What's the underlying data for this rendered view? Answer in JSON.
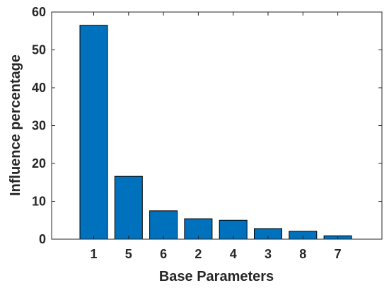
{
  "chart_data": {
    "type": "bar",
    "title": "",
    "xlabel": "Base Parameters",
    "ylabel": "Influence percentage",
    "categories": [
      "1",
      "5",
      "6",
      "2",
      "4",
      "3",
      "8",
      "7"
    ],
    "values": [
      56.5,
      16.6,
      7.5,
      5.4,
      5.0,
      2.8,
      2.1,
      0.9
    ],
    "ylim": [
      0,
      60
    ],
    "yticks": [
      "0",
      "10",
      "20",
      "30",
      "40",
      "50",
      "60"
    ],
    "grid": false,
    "legend": "none",
    "bar_color": "#0072BD",
    "bar_edge_color": "#000000",
    "axis_color": "#262626"
  }
}
